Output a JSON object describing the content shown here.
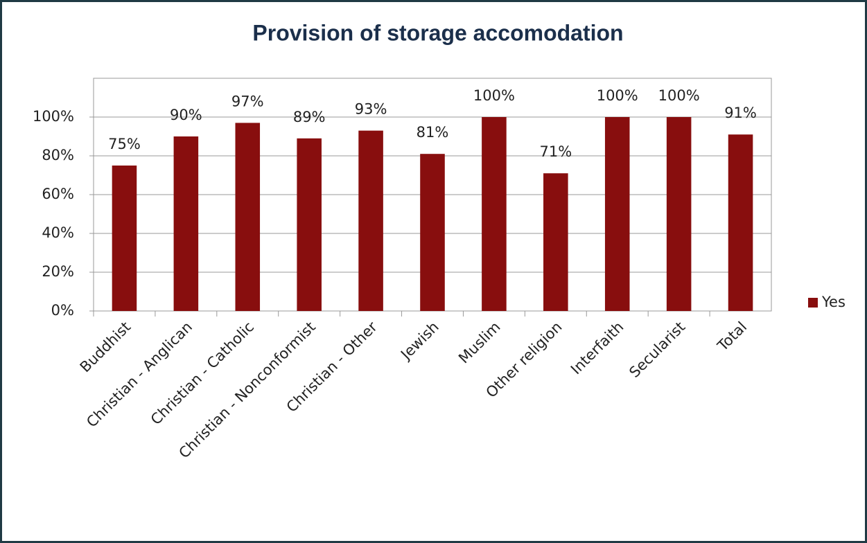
{
  "chart_data": {
    "type": "bar",
    "title": "Provision of storage accomodation",
    "categories": [
      "Buddhist",
      "Christian - Anglican",
      "Christian - Catholic",
      "Christian - Nonconformist",
      "Christian - Other",
      "Jewish",
      "Muslim",
      "Other religion",
      "Interfaith",
      "Secularist",
      "Total"
    ],
    "series": [
      {
        "name": "Yes",
        "color": "#880e0e",
        "values": [
          75,
          90,
          97,
          89,
          93,
          81,
          100,
          71,
          100,
          100,
          91
        ],
        "value_labels": [
          "75%",
          "90%",
          "97%",
          "89%",
          "93%",
          "81%",
          "100%",
          "71%",
          "100%",
          "100%",
          "91%"
        ]
      }
    ],
    "ylim": [
      0,
      120
    ],
    "yticks": [
      {
        "value": 0,
        "label": "0%"
      },
      {
        "value": 20,
        "label": "20%"
      },
      {
        "value": 40,
        "label": "40%"
      },
      {
        "value": 60,
        "label": "60%"
      },
      {
        "value": 80,
        "label": "80%"
      },
      {
        "value": 100,
        "label": "100%"
      }
    ],
    "grid": true,
    "legend": "right"
  }
}
